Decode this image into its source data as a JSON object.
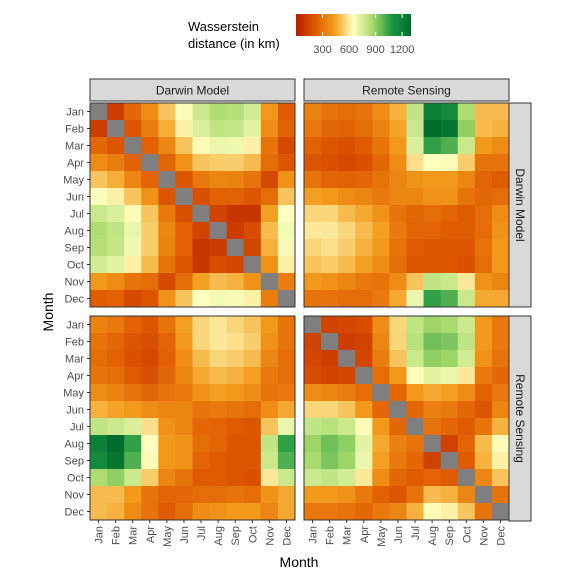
{
  "chart_data": {
    "type": "heatmap",
    "xlabel": "Month",
    "ylabel": "Month",
    "months": [
      "Jan",
      "Feb",
      "Mar",
      "Apr",
      "May",
      "Jun",
      "Jul",
      "Aug",
      "Sep",
      "Oct",
      "Nov",
      "Dec"
    ],
    "facet_columns": [
      "Darwin Model",
      "Remote Sensing"
    ],
    "facet_rows": [
      "Darwin Model",
      "Remote Sensing"
    ],
    "legend": {
      "title_lines": [
        "Wasserstein",
        "distance (in km)"
      ],
      "ticks": [
        300,
        600,
        900,
        1200
      ],
      "tick_labels": [
        "300",
        "600",
        "900",
        "1200"
      ],
      "range": [
        0,
        1300
      ],
      "position": "top",
      "colors": [
        "#b81c00",
        "#df5a00",
        "#f39c1c",
        "#ffffbf",
        "#a6d96a",
        "#1a9641",
        "#006d2c"
      ]
    },
    "diagonal_color": "#7f7f7f",
    "panels": [
      {
        "row": "Darwin Model",
        "col": "Darwin Model",
        "values": [
          [
            null,
            120,
            260,
            380,
            520,
            660,
            780,
            840,
            830,
            760,
            420,
            220
          ],
          [
            120,
            null,
            200,
            330,
            470,
            620,
            740,
            800,
            790,
            720,
            380,
            240
          ],
          [
            260,
            200,
            null,
            240,
            360,
            520,
            640,
            700,
            690,
            620,
            300,
            160
          ],
          [
            380,
            330,
            240,
            null,
            250,
            400,
            520,
            540,
            540,
            500,
            280,
            200
          ],
          [
            520,
            470,
            360,
            250,
            null,
            200,
            320,
            360,
            350,
            300,
            160,
            400
          ],
          [
            660,
            620,
            520,
            400,
            200,
            null,
            180,
            240,
            240,
            200,
            280,
            520
          ],
          [
            780,
            740,
            640,
            520,
            320,
            180,
            null,
            140,
            90,
            90,
            440,
            650
          ],
          [
            840,
            800,
            700,
            540,
            360,
            240,
            140,
            null,
            110,
            170,
            500,
            680
          ],
          [
            830,
            790,
            690,
            540,
            350,
            240,
            90,
            110,
            null,
            150,
            480,
            670
          ],
          [
            760,
            720,
            620,
            500,
            300,
            200,
            90,
            170,
            150,
            null,
            400,
            620
          ],
          [
            420,
            380,
            300,
            280,
            160,
            280,
            440,
            500,
            480,
            400,
            null,
            330
          ],
          [
            220,
            240,
            160,
            200,
            400,
            520,
            650,
            680,
            670,
            620,
            330,
            null
          ]
        ]
      },
      {
        "row": "Darwin Model",
        "col": "Remote Sensing",
        "values": [
          [
            350,
            300,
            280,
            300,
            380,
            480,
            800,
            1200,
            1150,
            850,
            500,
            500
          ],
          [
            320,
            260,
            240,
            280,
            350,
            450,
            780,
            1300,
            1250,
            900,
            500,
            480
          ],
          [
            240,
            200,
            180,
            220,
            300,
            420,
            740,
            1050,
            1000,
            780,
            420,
            380
          ],
          [
            200,
            180,
            160,
            180,
            260,
            380,
            580,
            650,
            640,
            540,
            300,
            300
          ],
          [
            300,
            250,
            240,
            260,
            300,
            360,
            400,
            420,
            420,
            360,
            250,
            220
          ],
          [
            440,
            420,
            380,
            360,
            320,
            360,
            360,
            400,
            400,
            300,
            260,
            280
          ],
          [
            560,
            560,
            500,
            460,
            400,
            300,
            260,
            280,
            250,
            220,
            280,
            380
          ],
          [
            600,
            600,
            560,
            500,
            440,
            320,
            250,
            250,
            220,
            220,
            280,
            400
          ],
          [
            560,
            580,
            540,
            480,
            420,
            300,
            220,
            200,
            200,
            200,
            300,
            420
          ],
          [
            520,
            540,
            500,
            440,
            380,
            280,
            200,
            200,
            200,
            180,
            280,
            420
          ],
          [
            420,
            400,
            360,
            320,
            300,
            380,
            520,
            800,
            780,
            600,
            400,
            360
          ],
          [
            300,
            300,
            280,
            280,
            320,
            460,
            700,
            1050,
            1000,
            780,
            460,
            460
          ]
        ]
      },
      {
        "row": "Remote Sensing",
        "col": "Darwin Model",
        "values": [
          [
            350,
            320,
            240,
            200,
            300,
            440,
            560,
            600,
            560,
            520,
            420,
            300
          ],
          [
            300,
            260,
            200,
            180,
            250,
            420,
            560,
            600,
            580,
            540,
            400,
            300
          ],
          [
            280,
            240,
            180,
            160,
            240,
            380,
            500,
            560,
            540,
            500,
            360,
            280
          ],
          [
            300,
            280,
            220,
            180,
            260,
            360,
            460,
            500,
            480,
            440,
            320,
            280
          ],
          [
            380,
            350,
            300,
            260,
            300,
            320,
            400,
            440,
            420,
            380,
            300,
            320
          ],
          [
            480,
            450,
            420,
            380,
            360,
            360,
            300,
            320,
            300,
            280,
            380,
            460
          ],
          [
            800,
            780,
            740,
            580,
            400,
            360,
            260,
            250,
            220,
            200,
            520,
            700
          ],
          [
            1200,
            1300,
            1050,
            650,
            420,
            400,
            280,
            250,
            200,
            200,
            800,
            1050
          ],
          [
            1150,
            1250,
            1000,
            640,
            420,
            400,
            250,
            220,
            200,
            200,
            780,
            1000
          ],
          [
            850,
            900,
            780,
            540,
            360,
            300,
            220,
            220,
            200,
            180,
            600,
            780
          ],
          [
            500,
            500,
            420,
            300,
            250,
            260,
            280,
            280,
            300,
            280,
            400,
            460
          ],
          [
            500,
            480,
            380,
            300,
            220,
            280,
            380,
            400,
            420,
            420,
            360,
            460
          ]
        ]
      },
      {
        "row": "Remote Sensing",
        "col": "Remote Sensing",
        "values": [
          [
            null,
            140,
            150,
            170,
            380,
            560,
            800,
            880,
            860,
            780,
            420,
            320
          ],
          [
            140,
            null,
            120,
            140,
            360,
            560,
            820,
            950,
            930,
            800,
            420,
            320
          ],
          [
            150,
            120,
            null,
            150,
            330,
            520,
            780,
            900,
            880,
            760,
            400,
            300
          ],
          [
            170,
            140,
            150,
            null,
            280,
            420,
            640,
            720,
            700,
            600,
            320,
            260
          ],
          [
            380,
            360,
            330,
            280,
            null,
            260,
            420,
            460,
            440,
            380,
            240,
            320
          ],
          [
            560,
            560,
            520,
            420,
            260,
            null,
            260,
            340,
            320,
            260,
            200,
            360
          ],
          [
            800,
            820,
            780,
            640,
            420,
            260,
            null,
            300,
            260,
            220,
            300,
            480
          ],
          [
            880,
            950,
            900,
            720,
            460,
            340,
            300,
            null,
            130,
            250,
            500,
            640
          ],
          [
            860,
            930,
            880,
            700,
            440,
            320,
            260,
            130,
            null,
            220,
            480,
            620
          ],
          [
            780,
            800,
            760,
            600,
            380,
            260,
            220,
            250,
            220,
            null,
            360,
            520
          ],
          [
            420,
            420,
            400,
            320,
            240,
            200,
            300,
            500,
            480,
            360,
            null,
            300
          ],
          [
            320,
            320,
            300,
            260,
            320,
            360,
            480,
            640,
            620,
            520,
            300,
            null
          ]
        ]
      }
    ]
  }
}
